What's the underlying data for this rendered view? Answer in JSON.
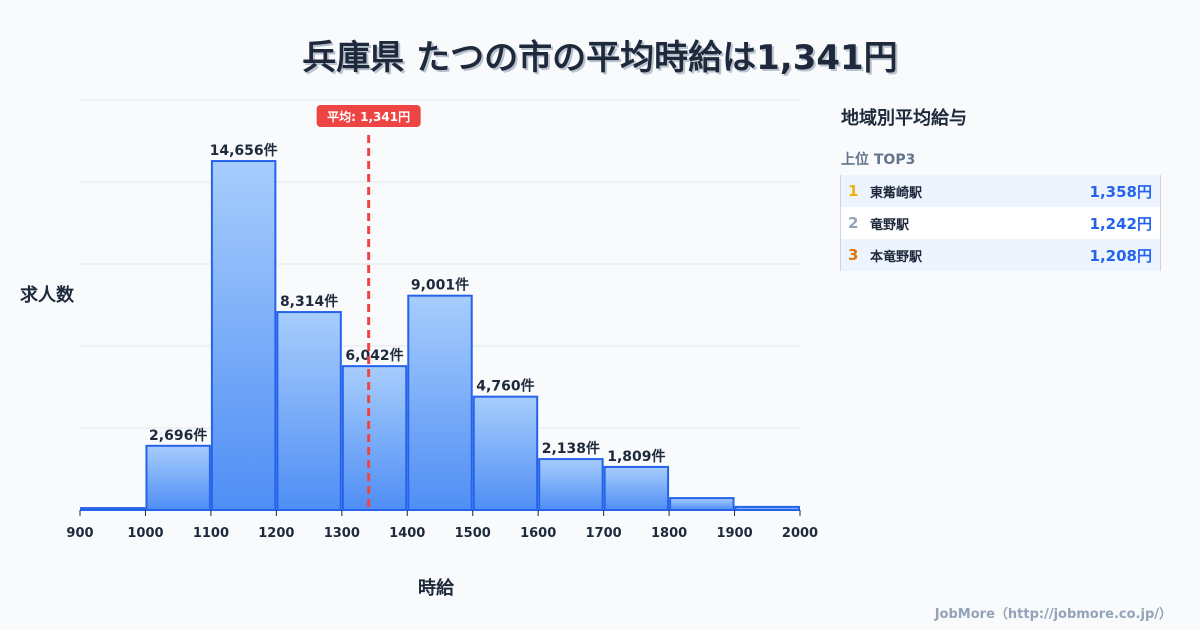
{
  "title": "兵庫県 たつの市の平均時給は1,341円",
  "chart_data": {
    "type": "bar",
    "title": "兵庫県 たつの市の平均時給は1,341円",
    "xlabel": "時給",
    "ylabel": "求人数",
    "x_ticks": [
      900,
      1000,
      1100,
      1200,
      1300,
      1400,
      1500,
      1600,
      1700,
      1800,
      1900,
      2000
    ],
    "categories": [
      "900-1000",
      "1000-1100",
      "1100-1200",
      "1200-1300",
      "1300-1400",
      "1400-1500",
      "1500-1600",
      "1600-1700",
      "1700-1800",
      "1800-1900",
      "1900-2000"
    ],
    "values": [
      80,
      2696,
      14656,
      8314,
      6042,
      9001,
      4760,
      2138,
      1809,
      500,
      130
    ],
    "labels": [
      "",
      "2,696件",
      "14,656件",
      "8,314件",
      "6,042件",
      "9,001件",
      "4,760件",
      "2,138件",
      "1,809件",
      "",
      ""
    ],
    "xlim": [
      900,
      2000
    ],
    "ylim": [
      0,
      17220
    ],
    "grid": true,
    "average": {
      "value": 1341,
      "label": "平均: 1,341円"
    },
    "colors": {
      "bar_top": "#a7cdfc",
      "bar_bottom": "#4f8ef5",
      "bar_border": "#2563eb",
      "avg_line": "#ef4444"
    }
  },
  "axis": {
    "ylabel": "求人数",
    "xlabel": "時給"
  },
  "panel": {
    "title": "地域別平均給与",
    "subtitle": "上位 TOP3",
    "rows": [
      {
        "rank": "1",
        "name": "東觜崎駅",
        "value": "1,358円",
        "rank_color": "#eab308"
      },
      {
        "rank": "2",
        "name": "竜野駅",
        "value": "1,242円",
        "rank_color": "#94a3b8"
      },
      {
        "rank": "3",
        "name": "本竜野駅",
        "value": "1,208円",
        "rank_color": "#d97706"
      }
    ]
  },
  "footer": "JobMore（http://jobmore.co.jp/）"
}
